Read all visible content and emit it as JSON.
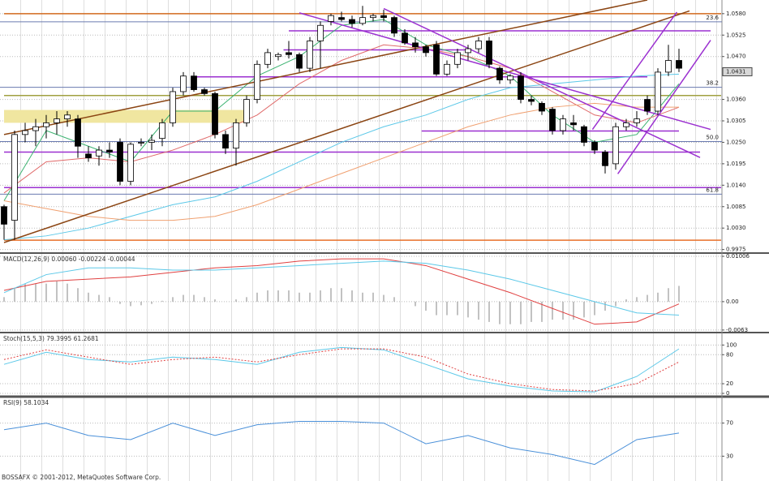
{
  "chart_data": [
    {
      "type": "candlestick",
      "open": [
        1.0085,
        1.005,
        1.027,
        1.028,
        1.029,
        1.03,
        1.031,
        1.031,
        1.022,
        1.0215,
        1.023,
        1.025,
        1.015,
        1.025,
        1.025,
        1.026,
        1.03,
        1.038,
        1.042,
        1.0385,
        1.0375,
        1.027,
        1.0235,
        1.03,
        1.036,
        1.045,
        1.047,
        1.048,
        1.0475,
        1.044,
        1.051,
        1.056,
        1.057,
        1.0565,
        1.0555,
        1.057,
        1.0575,
        1.057,
        1.053,
        1.0505,
        1.0495,
        1.05,
        1.0425,
        1.045,
        1.048,
        1.049,
        1.051,
        1.044,
        1.041,
        1.042,
        1.036,
        1.035,
        1.0335,
        1.028,
        1.03,
        1.029,
        1.025,
        1.0225,
        1.0195,
        1.029,
        1.03,
        1.036,
        1.033,
        1.043,
        1.046
      ],
      "high": [
        1.009,
        1.028,
        1.03,
        1.031,
        1.032,
        1.033,
        1.033,
        1.032,
        1.024,
        1.024,
        1.025,
        1.026,
        1.025,
        1.026,
        1.027,
        1.031,
        1.039,
        1.043,
        1.043,
        1.039,
        1.038,
        1.028,
        1.031,
        1.037,
        1.046,
        1.049,
        1.048,
        1.051,
        1.048,
        1.052,
        1.056,
        1.058,
        1.0585,
        1.0575,
        1.06,
        1.058,
        1.059,
        1.0575,
        1.054,
        1.052,
        1.05,
        1.051,
        1.046,
        1.049,
        1.05,
        1.052,
        1.052,
        1.0445,
        1.0425,
        1.043,
        1.037,
        1.0355,
        1.034,
        1.032,
        1.032,
        1.0295,
        1.0255,
        1.023,
        1.03,
        1.031,
        1.033,
        1.037,
        1.044,
        1.05,
        1.049
      ],
      "low": [
        1.0,
        1.0,
        1.025,
        1.024,
        1.026,
        1.027,
        1.029,
        1.021,
        1.02,
        1.019,
        1.021,
        1.014,
        1.014,
        1.024,
        1.023,
        1.024,
        1.029,
        1.037,
        1.038,
        1.037,
        1.026,
        1.022,
        1.019,
        1.029,
        1.035,
        1.044,
        1.046,
        1.0465,
        1.043,
        1.043,
        1.044,
        1.055,
        1.056,
        1.0545,
        1.055,
        1.056,
        1.056,
        1.052,
        1.05,
        1.048,
        1.047,
        1.042,
        1.042,
        1.044,
        1.046,
        1.048,
        1.044,
        1.04,
        1.04,
        1.035,
        1.0345,
        1.032,
        1.027,
        1.027,
        1.028,
        1.024,
        1.022,
        1.017,
        1.018,
        1.028,
        1.029,
        1.032,
        1.032,
        1.042,
        1.043
      ],
      "close": [
        1.004,
        1.027,
        1.028,
        1.029,
        1.03,
        1.031,
        1.032,
        1.024,
        1.021,
        1.023,
        1.0225,
        1.015,
        1.0245,
        1.025,
        1.0255,
        1.03,
        1.038,
        1.042,
        1.0385,
        1.0375,
        1.027,
        1.0235,
        1.03,
        1.036,
        1.045,
        1.048,
        1.0475,
        1.0475,
        1.044,
        1.051,
        1.055,
        1.0575,
        1.0565,
        1.0555,
        1.057,
        1.0575,
        1.057,
        1.053,
        1.0505,
        1.0495,
        1.048,
        1.0425,
        1.045,
        1.048,
        1.049,
        1.051,
        1.045,
        1.041,
        1.042,
        1.036,
        1.0355,
        1.033,
        1.028,
        1.031,
        1.0295,
        1.025,
        1.023,
        1.019,
        1.029,
        1.03,
        1.031,
        1.033,
        1.043,
        1.046,
        1.044
      ],
      "ylim": [
        0.9968,
        1.0615
      ],
      "yticks": [
        {
          "value": 1.058,
          "label": "1.0580"
        },
        {
          "value": 1.0525,
          "label": "1.0525"
        },
        {
          "value": 1.047,
          "label": "1.0470"
        },
        {
          "value": 1.036,
          "label": "1.0360"
        },
        {
          "value": 1.0305,
          "label": "1.0305"
        },
        {
          "value": 1.025,
          "label": "1.0250"
        },
        {
          "value": 1.0195,
          "label": "1.0195"
        },
        {
          "value": 1.014,
          "label": "1.0140"
        },
        {
          "value": 1.0085,
          "label": "1.0085"
        },
        {
          "value": 1.003,
          "label": "1.0030"
        },
        {
          "value": 0.9975,
          "label": "0.9975"
        }
      ],
      "grid": true,
      "last_price": 1.0431,
      "moving_averages": [
        {
          "color": "#3cb371",
          "x": [
            0,
            4,
            8,
            12,
            16,
            20,
            24,
            28,
            32,
            36,
            40,
            44,
            48,
            52,
            56,
            60,
            64
          ],
          "values": [
            1.01,
            1.028,
            1.024,
            1.02,
            1.033,
            1.033,
            1.042,
            1.047,
            1.055,
            1.0565,
            1.05,
            1.047,
            1.042,
            1.032,
            1.025,
            1.027,
            1.04
          ]
        },
        {
          "color": "#e06a6a",
          "x": [
            0,
            4,
            8,
            12,
            16,
            20,
            24,
            28,
            32,
            36,
            40,
            44,
            48,
            52,
            56,
            60,
            64
          ],
          "values": [
            1.012,
            1.02,
            1.021,
            1.02,
            1.023,
            1.027,
            1.032,
            1.04,
            1.046,
            1.05,
            1.049,
            1.047,
            1.044,
            1.038,
            1.032,
            1.03,
            1.034
          ]
        },
        {
          "color": "#5bc8e8",
          "x": [
            0,
            4,
            8,
            12,
            16,
            20,
            24,
            28,
            32,
            36,
            40,
            44,
            48,
            52,
            56,
            60,
            64
          ],
          "values": [
            1.0,
            1.001,
            1.003,
            1.006,
            1.009,
            1.011,
            1.015,
            1.02,
            1.025,
            1.029,
            1.032,
            1.036,
            1.039,
            1.04,
            1.041,
            1.042,
            1.0425
          ]
        },
        {
          "color": "#f0a070",
          "x": [
            0,
            4,
            8,
            12,
            16,
            20,
            24,
            28,
            32,
            36,
            40,
            44,
            48,
            52,
            56,
            60,
            64
          ],
          "values": [
            1.01,
            1.008,
            1.006,
            1.005,
            1.005,
            1.006,
            1.009,
            1.013,
            1.017,
            1.021,
            1.025,
            1.029,
            1.032,
            1.034,
            1.035,
            1.034,
            1.034
          ]
        }
      ],
      "hlines": [
        {
          "value": 1.058,
          "color": "#d2691e",
          "x": [
            0,
            68
          ]
        },
        {
          "value": 1.0536,
          "color": "#9b30d0",
          "x": [
            27,
            67
          ]
        },
        {
          "value": 1.0487,
          "color": "#9b30d0",
          "x": [
            26.5,
            44
          ]
        },
        {
          "value": 1.0418,
          "color": "#9b30d0",
          "x": [
            18,
            61
          ]
        },
        {
          "value": 1.037,
          "color": "#a0a040",
          "x": [
            0,
            68
          ]
        },
        {
          "value": 1.0279,
          "color": "#9b30d0",
          "x": [
            39.6,
            64
          ]
        },
        {
          "value": 1.0225,
          "color": "#9b30d0",
          "x": [
            0,
            66
          ]
        },
        {
          "value": 1.0134,
          "color": "#9b30d0",
          "x": [
            0,
            68
          ]
        },
        {
          "value": 0.9999,
          "color": "#e8702a",
          "x": [
            0,
            68
          ]
        }
      ],
      "fib_levels": [
        {
          "label": "23.6",
          "value": 1.0559
        },
        {
          "label": "38.2",
          "value": 1.0391
        },
        {
          "label": "50.0",
          "value": 1.0252
        },
        {
          "label": "61.8",
          "value": 1.0117
        }
      ],
      "fib_color": "#6a7ab0",
      "trendlines": [
        {
          "color": "#8b4513",
          "x": [
            0,
            61
          ],
          "y": [
            1.027,
            1.0615
          ]
        },
        {
          "color": "#8b4513",
          "x": [
            0,
            65
          ],
          "y": [
            0.9993,
            1.0587
          ]
        },
        {
          "color": "#9b30d0",
          "x": [
            28,
            67
          ],
          "y": [
            1.0582,
            1.0283
          ]
        },
        {
          "color": "#9b30d0",
          "x": [
            36,
            66
          ],
          "y": [
            1.0593,
            1.0211
          ]
        },
        {
          "color": "#9b30d0",
          "x": [
            55.8,
            63.8
          ],
          "y": [
            1.0283,
            1.0584
          ]
        },
        {
          "color": "#9b30d0",
          "x": [
            58.2,
            67
          ],
          "y": [
            1.0169,
            1.0512
          ]
        }
      ],
      "zones": [
        {
          "color": "#f0e6a0",
          "x": [
            0,
            23
          ],
          "y": [
            1.03,
            1.0333
          ]
        }
      ]
    },
    {
      "type": "macd",
      "title": "MACD(12,26,9) 0.00060 -0.00224 -0.00044",
      "histogram_color": "#999999",
      "histogram": [
        0.001,
        0.003,
        0.004,
        0.004,
        0.004,
        0.0045,
        0.004,
        0.003,
        0.002,
        0.0015,
        0.001,
        -0.0005,
        -0.001,
        -0.0008,
        -0.0005,
        0.0002,
        0.001,
        0.0015,
        0.0015,
        0.001,
        0.0005,
        0,
        0.0005,
        0.001,
        0.002,
        0.0025,
        0.0025,
        0.0025,
        0.002,
        0.002,
        0.0025,
        0.003,
        0.003,
        0.0025,
        0.002,
        0.002,
        0.0015,
        0.001,
        0,
        -0.001,
        -0.002,
        -0.003,
        -0.003,
        -0.003,
        -0.0035,
        -0.004,
        -0.0045,
        -0.005,
        -0.005,
        -0.005,
        -0.0045,
        -0.0045,
        -0.004,
        -0.004,
        -0.004,
        -0.0035,
        -0.003,
        -0.002,
        -0.001,
        0.0005,
        0.001,
        0.0015,
        0.002,
        0.003,
        0.0035
      ],
      "series": [
        {
          "color": "#e04040",
          "x": [
            0,
            4,
            8,
            12,
            16,
            20,
            24,
            28,
            32,
            36,
            40,
            44,
            48,
            52,
            56,
            60,
            64
          ],
          "values": [
            0.0025,
            0.0045,
            0.005,
            0.0055,
            0.0065,
            0.0075,
            0.008,
            0.009,
            0.0095,
            0.0095,
            0.008,
            0.005,
            0.002,
            -0.0015,
            -0.005,
            -0.0045,
            -0.0005
          ]
        },
        {
          "color": "#5bc8e8",
          "x": [
            0,
            4,
            8,
            12,
            16,
            20,
            24,
            28,
            32,
            36,
            40,
            44,
            48,
            52,
            56,
            60,
            64
          ],
          "values": [
            0.002,
            0.006,
            0.0075,
            0.0075,
            0.007,
            0.007,
            0.0075,
            0.008,
            0.0085,
            0.009,
            0.0085,
            0.007,
            0.005,
            0.0025,
            0,
            -0.0025,
            -0.003
          ]
        }
      ],
      "ylim": [
        -0.0065,
        0.0106
      ],
      "yticks": [
        0.01006,
        {
          "value": 0,
          "label": "0.00"
        },
        -0.0063
      ],
      "grid": true
    },
    {
      "type": "stochastic",
      "title": "Stoch(15,5,3) 79.3995 61.2681",
      "series": [
        {
          "color": "#5bc8e8",
          "dash": false,
          "x": [
            0,
            4,
            8,
            12,
            16,
            20,
            24,
            28,
            32,
            36,
            40,
            44,
            48,
            52,
            56,
            60,
            64
          ],
          "values": [
            60,
            85,
            70,
            65,
            75,
            70,
            60,
            85,
            95,
            90,
            60,
            30,
            15,
            5,
            3,
            35,
            92
          ]
        },
        {
          "color": "#e04040",
          "dash": true,
          "x": [
            0,
            4,
            8,
            12,
            16,
            20,
            24,
            28,
            32,
            36,
            40,
            44,
            48,
            52,
            56,
            60,
            64
          ],
          "values": [
            70,
            90,
            75,
            60,
            70,
            75,
            65,
            80,
            92,
            92,
            75,
            40,
            20,
            8,
            5,
            20,
            65
          ]
        }
      ],
      "ylim": [
        -3.4,
        122.4
      ],
      "yticks": [
        100,
        80,
        20,
        0
      ],
      "grid": true
    },
    {
      "type": "rsi",
      "title": "RSI(9) 58.1034",
      "series": [
        {
          "color": "#4a90d9",
          "x": [
            0,
            4,
            8,
            12,
            16,
            20,
            24,
            28,
            32,
            36,
            40,
            44,
            48,
            52,
            56,
            60,
            64
          ],
          "values": [
            62,
            70,
            55,
            50,
            70,
            55,
            68,
            72,
            72,
            70,
            45,
            55,
            40,
            32,
            20,
            50,
            58
          ]
        }
      ],
      "ylim": [
        0,
        100
      ],
      "yticks": [
        70,
        30
      ],
      "grid": true
    }
  ],
  "footer": "BOSSAFX © 2001-2012, MetaQuotes Software Corp."
}
